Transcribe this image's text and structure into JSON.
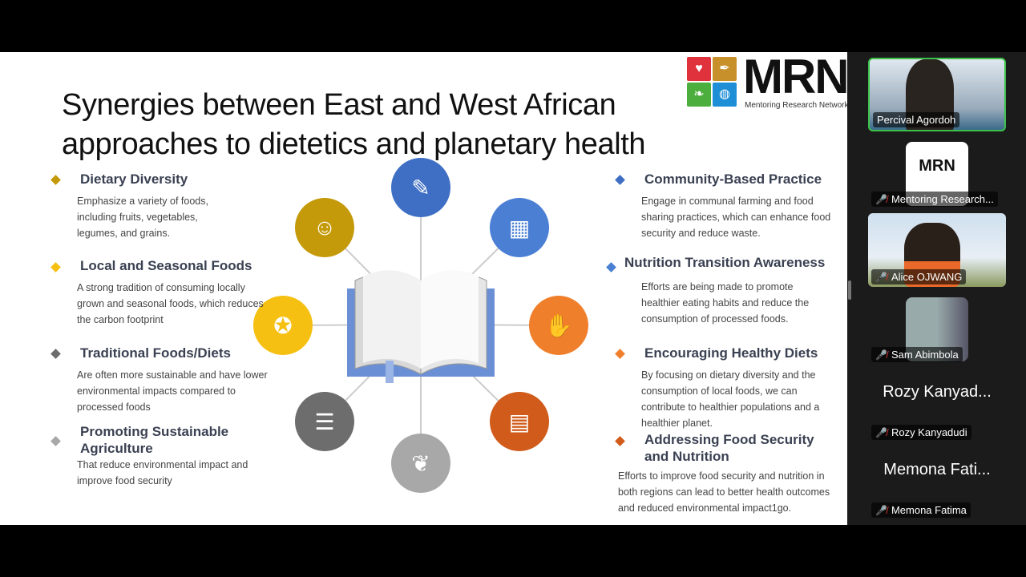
{
  "slide": {
    "title_line1": "Synergies between East and West African",
    "title_line2": "approaches to dietetics and planetary health",
    "logo": {
      "text": "MRN",
      "subtitle": "Mentoring Research Network"
    },
    "left_items": [
      {
        "heading": "Dietary Diversity",
        "body": "Emphasize a variety of foods, including fruits, vegetables, legumes, and grains.",
        "color": "#c49a0a"
      },
      {
        "heading": "Local and Seasonal Foods",
        "body": "A strong tradition of consuming locally grown and seasonal foods, which reduces the carbon footprint",
        "color": "#f5c012"
      },
      {
        "heading": "Traditional Foods/Diets",
        "body": "Are often more sustainable and have lower environmental impacts compared to processed foods",
        "color": "#6d6d6d"
      },
      {
        "heading": "Promoting Sustainable Agriculture",
        "body": "That reduce environmental impact and improve food security",
        "color": "#a8a8a8"
      }
    ],
    "right_items": [
      {
        "heading": "Community-Based Practice",
        "body": "Engage in communal farming and food sharing practices, which can enhance food security and reduce waste.",
        "color": "#3f6fc4"
      },
      {
        "heading": "Nutrition Transition Awareness",
        "body": "Efforts are being made to promote healthier eating habits and reduce the consumption of processed foods.",
        "color": "#4a7fd4"
      },
      {
        "heading": "Encouraging Healthy Diets",
        "body": "By focusing on dietary diversity and the consumption of local foods, we can contribute to healthier populations and a healthier planet.",
        "color": "#f07f2c"
      },
      {
        "heading": "Addressing Food Security and Nutrition",
        "body": "Efforts to improve food security and nutrition in both regions can lead to better health outcomes and reduced environmental impact1go.",
        "color": "#d05b1a"
      }
    ],
    "hub_icons": [
      {
        "icon": "student-desk-icon",
        "color": "#3f6fc4",
        "glyph": "✎"
      },
      {
        "icon": "school-building-icon",
        "color": "#4a7fd4",
        "glyph": "▦"
      },
      {
        "icon": "raised-hands-icon",
        "color": "#f07f2c",
        "glyph": "✋"
      },
      {
        "icon": "teacher-board-icon",
        "color": "#d05b1a",
        "glyph": "▤"
      },
      {
        "icon": "owl-book-icon",
        "color": "#a8a8a8",
        "glyph": "❦"
      },
      {
        "icon": "books-stack-icon",
        "color": "#6d6d6d",
        "glyph": "☰"
      },
      {
        "icon": "certificate-icon",
        "color": "#f5c012",
        "glyph": "✪"
      },
      {
        "icon": "reader-icon",
        "color": "#c49a0a",
        "glyph": "☺"
      }
    ]
  },
  "participants": [
    {
      "name": "Percival Agordoh",
      "active": true,
      "muted": false,
      "video": true
    },
    {
      "name": "Mentoring Research...",
      "muted": true,
      "logo": "MRN"
    },
    {
      "name": "Alice OJWANG",
      "muted": true,
      "video": true
    },
    {
      "name": "Sam Abimbola",
      "muted": true,
      "video": true
    },
    {
      "name": "Rozy Kanyadudi",
      "display": "Rozy Kanyad...",
      "muted": true
    },
    {
      "name": "Memona Fatima",
      "display": "Memona Fati...",
      "muted": true
    }
  ]
}
